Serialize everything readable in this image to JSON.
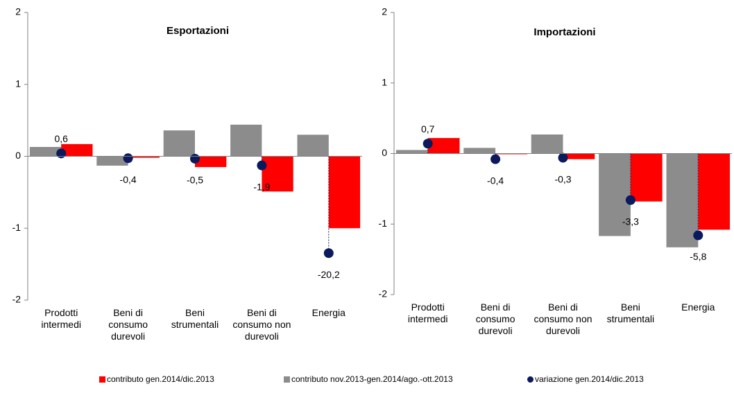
{
  "chart_data": [
    {
      "type": "bar",
      "title": "Esportazioni",
      "categories": [
        "Prodotti\nintermedi",
        "Beni di\nconsumo\ndurevoli",
        "Beni\nstrumentali",
        "Beni di\nconsumo non\ndurevoli",
        "Energia"
      ],
      "series": [
        {
          "name": "contributo nov.2013-gen.2014/ago.-ott.2013",
          "color": "#8c8c8c",
          "values": [
            0.13,
            -0.13,
            0.36,
            0.44,
            0.3
          ]
        },
        {
          "name": "contributo gen.2014/dic.2013",
          "color": "#ff0000",
          "values": [
            0.17,
            -0.02,
            -0.15,
            -0.49,
            -1.0
          ]
        },
        {
          "name": "variazione gen.2014/dic.2013",
          "color": "#0a1a5c",
          "type": "scatter",
          "axis": "y2",
          "values": [
            0.6,
            -0.4,
            -0.5,
            -1.9,
            -20.2
          ],
          "value_labels": [
            "0,6",
            "-0,4",
            "-0,5",
            "-1,9",
            "-20,2"
          ]
        }
      ],
      "ylim": [
        -2,
        2
      ],
      "yticks": [
        -2,
        -1,
        0,
        1,
        2
      ],
      "y2lim": [
        -30,
        30
      ]
    },
    {
      "type": "bar",
      "title": "Importazioni",
      "categories": [
        "Prodotti\nintermedi",
        "Beni di\nconsumo\ndurevoli",
        "Beni di\nconsumo non\ndurevoli",
        "Beni\nstrumentali",
        "Energia"
      ],
      "series": [
        {
          "name": "contributo nov.2013-gen.2014/ago.-ott.2013",
          "color": "#8c8c8c",
          "values": [
            0.05,
            0.08,
            0.27,
            -1.17,
            -1.33
          ]
        },
        {
          "name": "contributo gen.2014/dic.2013",
          "color": "#ff0000",
          "values": [
            0.22,
            -0.01,
            -0.08,
            -0.68,
            -1.08
          ]
        },
        {
          "name": "variazione gen.2014/dic.2013",
          "color": "#0a1a5c",
          "type": "scatter",
          "axis": "y2",
          "values": [
            0.7,
            -0.4,
            -0.3,
            -3.3,
            -5.8
          ],
          "value_labels": [
            "0,7",
            "-0,4",
            "-0,3",
            "-3,3",
            "-5,8"
          ]
        }
      ],
      "ylim": [
        -2,
        2
      ],
      "yticks": [
        -2,
        -1,
        0,
        1,
        2
      ],
      "y2lim": [
        -10,
        10
      ]
    }
  ]
}
